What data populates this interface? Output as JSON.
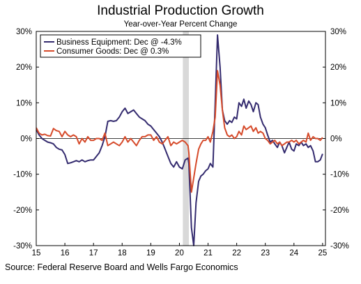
{
  "chart_data": {
    "type": "line",
    "title": "Industrial Production Growth",
    "subtitle": "Year-over-Year Percent Change",
    "source": "Source: Federal Reserve Board and Wells Fargo Economics",
    "xlim": [
      2015.0,
      2025.1
    ],
    "ylim": [
      -30,
      30
    ],
    "x_ticks": [
      {
        "value": 2015,
        "label": "15"
      },
      {
        "value": 2016,
        "label": "16"
      },
      {
        "value": 2017,
        "label": "17"
      },
      {
        "value": 2018,
        "label": "18"
      },
      {
        "value": 2019,
        "label": "19"
      },
      {
        "value": 2020,
        "label": "20"
      },
      {
        "value": 2021,
        "label": "21"
      },
      {
        "value": 2022,
        "label": "22"
      },
      {
        "value": 2023,
        "label": "23"
      },
      {
        "value": 2024,
        "label": "24"
      },
      {
        "value": 2025,
        "label": "25"
      }
    ],
    "y_ticks": [
      {
        "value": 30,
        "label": "30%"
      },
      {
        "value": 20,
        "label": "20%"
      },
      {
        "value": 10,
        "label": "10%"
      },
      {
        "value": 0,
        "label": "0%"
      },
      {
        "value": -10,
        "label": "-10%"
      },
      {
        "value": -20,
        "label": "-20%"
      },
      {
        "value": -30,
        "label": "-30%"
      }
    ],
    "recession_shading": {
      "start": 2020.12,
      "end": 2020.33,
      "color": "#d9d9d9"
    },
    "grid": false,
    "zero_line": true,
    "legend": {
      "position": "top-left"
    },
    "series": [
      {
        "name": "Business Equipment: Dec @ -4.3%",
        "color": "#332a6e",
        "points": [
          [
            2015.0,
            2.5
          ],
          [
            2015.1,
            1.0
          ],
          [
            2015.2,
            0.0
          ],
          [
            2015.3,
            -0.5
          ],
          [
            2015.4,
            -1.0
          ],
          [
            2015.5,
            -1.2
          ],
          [
            2015.6,
            -1.5
          ],
          [
            2015.7,
            -2.5
          ],
          [
            2015.8,
            -3.0
          ],
          [
            2015.9,
            -3.2
          ],
          [
            2016.0,
            -4.5
          ],
          [
            2016.1,
            -7.0
          ],
          [
            2016.2,
            -6.8
          ],
          [
            2016.3,
            -6.5
          ],
          [
            2016.4,
            -6.2
          ],
          [
            2016.5,
            -6.5
          ],
          [
            2016.6,
            -6.0
          ],
          [
            2016.7,
            -6.5
          ],
          [
            2016.8,
            -6.2
          ],
          [
            2016.9,
            -6.0
          ],
          [
            2017.0,
            -6.0
          ],
          [
            2017.1,
            -5.0
          ],
          [
            2017.2,
            -4.0
          ],
          [
            2017.3,
            -2.0
          ],
          [
            2017.4,
            0.5
          ],
          [
            2017.5,
            4.8
          ],
          [
            2017.6,
            5.0
          ],
          [
            2017.7,
            4.8
          ],
          [
            2017.8,
            5.0
          ],
          [
            2017.9,
            6.0
          ],
          [
            2018.0,
            7.5
          ],
          [
            2018.1,
            8.5
          ],
          [
            2018.2,
            7.0
          ],
          [
            2018.3,
            7.5
          ],
          [
            2018.4,
            8.0
          ],
          [
            2018.5,
            7.0
          ],
          [
            2018.6,
            6.0
          ],
          [
            2018.7,
            5.5
          ],
          [
            2018.8,
            5.0
          ],
          [
            2018.9,
            4.0
          ],
          [
            2019.0,
            3.5
          ],
          [
            2019.1,
            2.5
          ],
          [
            2019.2,
            1.5
          ],
          [
            2019.3,
            0.5
          ],
          [
            2019.4,
            -1.0
          ],
          [
            2019.5,
            -3.0
          ],
          [
            2019.6,
            -5.0
          ],
          [
            2019.7,
            -7.0
          ],
          [
            2019.8,
            -8.0
          ],
          [
            2019.9,
            -6.5
          ],
          [
            2020.0,
            -8.0
          ],
          [
            2020.1,
            -8.5
          ],
          [
            2020.2,
            -6.0
          ],
          [
            2020.3,
            -5.5
          ],
          [
            2020.33,
            -7.0
          ],
          [
            2020.42,
            -25.0
          ],
          [
            2020.5,
            -30.0
          ],
          [
            2020.58,
            -18.0
          ],
          [
            2020.67,
            -12.0
          ],
          [
            2020.75,
            -10.5
          ],
          [
            2020.83,
            -10.0
          ],
          [
            2020.92,
            -9.0
          ],
          [
            2021.0,
            -8.5
          ],
          [
            2021.08,
            -7.0
          ],
          [
            2021.17,
            -8.0
          ],
          [
            2021.25,
            10.0
          ],
          [
            2021.33,
            29.0
          ],
          [
            2021.42,
            20.0
          ],
          [
            2021.5,
            8.0
          ],
          [
            2021.58,
            5.0
          ],
          [
            2021.67,
            4.0
          ],
          [
            2021.75,
            5.0
          ],
          [
            2021.83,
            4.5
          ],
          [
            2021.92,
            6.0
          ],
          [
            2022.0,
            5.5
          ],
          [
            2022.08,
            10.0
          ],
          [
            2022.17,
            9.0
          ],
          [
            2022.25,
            11.0
          ],
          [
            2022.33,
            8.5
          ],
          [
            2022.42,
            10.5
          ],
          [
            2022.5,
            9.5
          ],
          [
            2022.58,
            7.5
          ],
          [
            2022.67,
            10.0
          ],
          [
            2022.75,
            9.5
          ],
          [
            2022.83,
            6.0
          ],
          [
            2022.92,
            4.0
          ],
          [
            2023.0,
            3.0
          ],
          [
            2023.08,
            1.0
          ],
          [
            2023.17,
            -1.0
          ],
          [
            2023.25,
            -0.5
          ],
          [
            2023.33,
            -1.5
          ],
          [
            2023.42,
            -2.5
          ],
          [
            2023.5,
            -1.0
          ],
          [
            2023.58,
            -2.0
          ],
          [
            2023.67,
            -4.0
          ],
          [
            2023.75,
            -2.5
          ],
          [
            2023.83,
            -1.0
          ],
          [
            2023.92,
            -3.0
          ],
          [
            2024.0,
            -3.5
          ],
          [
            2024.08,
            -1.5
          ],
          [
            2024.17,
            -2.0
          ],
          [
            2024.25,
            -1.0
          ],
          [
            2024.33,
            -2.0
          ],
          [
            2024.42,
            -1.5
          ],
          [
            2024.5,
            -2.5
          ],
          [
            2024.58,
            -2.0
          ],
          [
            2024.67,
            -3.5
          ],
          [
            2024.75,
            -6.5
          ],
          [
            2024.83,
            -6.5
          ],
          [
            2024.92,
            -6.0
          ],
          [
            2025.0,
            -4.3
          ]
        ]
      },
      {
        "name": "Consumer Goods: Dec @ 0.3%",
        "color": "#d64a2a",
        "points": [
          [
            2015.0,
            3.0
          ],
          [
            2015.1,
            1.5
          ],
          [
            2015.2,
            1.0
          ],
          [
            2015.3,
            1.2
          ],
          [
            2015.4,
            0.8
          ],
          [
            2015.5,
            0.7
          ],
          [
            2015.6,
            2.8
          ],
          [
            2015.7,
            2.2
          ],
          [
            2015.8,
            2.0
          ],
          [
            2015.9,
            0.5
          ],
          [
            2016.0,
            2.0
          ],
          [
            2016.1,
            1.0
          ],
          [
            2016.2,
            0.5
          ],
          [
            2016.3,
            1.0
          ],
          [
            2016.4,
            0.5
          ],
          [
            2016.5,
            -1.5
          ],
          [
            2016.6,
            0.0
          ],
          [
            2016.7,
            -1.0
          ],
          [
            2016.8,
            0.5
          ],
          [
            2016.9,
            -0.5
          ],
          [
            2017.0,
            -0.5
          ],
          [
            2017.1,
            0.0
          ],
          [
            2017.2,
            0.0
          ],
          [
            2017.3,
            -0.5
          ],
          [
            2017.4,
            1.5
          ],
          [
            2017.5,
            -2.0
          ],
          [
            2017.6,
            -1.5
          ],
          [
            2017.7,
            -1.0
          ],
          [
            2017.8,
            -1.5
          ],
          [
            2017.9,
            -2.0
          ],
          [
            2018.0,
            -1.0
          ],
          [
            2018.1,
            0.5
          ],
          [
            2018.2,
            -1.0
          ],
          [
            2018.3,
            0.0
          ],
          [
            2018.4,
            -1.0
          ],
          [
            2018.5,
            -2.0
          ],
          [
            2018.6,
            -0.5
          ],
          [
            2018.7,
            0.5
          ],
          [
            2018.8,
            0.5
          ],
          [
            2018.9,
            1.0
          ],
          [
            2019.0,
            1.0
          ],
          [
            2019.1,
            -0.5
          ],
          [
            2019.2,
            0.5
          ],
          [
            2019.3,
            -1.0
          ],
          [
            2019.4,
            -1.5
          ],
          [
            2019.5,
            -0.5
          ],
          [
            2019.6,
            0.5
          ],
          [
            2019.7,
            -2.0
          ],
          [
            2019.8,
            -1.0
          ],
          [
            2019.9,
            -1.5
          ],
          [
            2020.0,
            -1.0
          ],
          [
            2020.1,
            -0.5
          ],
          [
            2020.2,
            -1.0
          ],
          [
            2020.3,
            -2.0
          ],
          [
            2020.33,
            -4.0
          ],
          [
            2020.42,
            -15.0
          ],
          [
            2020.5,
            -11.0
          ],
          [
            2020.58,
            -7.0
          ],
          [
            2020.67,
            -3.0
          ],
          [
            2020.75,
            -1.5
          ],
          [
            2020.83,
            -0.5
          ],
          [
            2020.92,
            -0.5
          ],
          [
            2021.0,
            0.5
          ],
          [
            2021.08,
            -1.0
          ],
          [
            2021.17,
            2.0
          ],
          [
            2021.25,
            6.0
          ],
          [
            2021.33,
            19.0
          ],
          [
            2021.42,
            15.0
          ],
          [
            2021.5,
            8.0
          ],
          [
            2021.58,
            3.0
          ],
          [
            2021.67,
            1.0
          ],
          [
            2021.75,
            0.5
          ],
          [
            2021.83,
            1.0
          ],
          [
            2021.92,
            0.0
          ],
          [
            2022.0,
            0.5
          ],
          [
            2022.08,
            2.0
          ],
          [
            2022.17,
            1.0
          ],
          [
            2022.25,
            3.5
          ],
          [
            2022.33,
            2.5
          ],
          [
            2022.42,
            3.0
          ],
          [
            2022.5,
            3.5
          ],
          [
            2022.58,
            2.0
          ],
          [
            2022.67,
            3.0
          ],
          [
            2022.75,
            1.5
          ],
          [
            2022.83,
            2.0
          ],
          [
            2022.92,
            1.5
          ],
          [
            2023.0,
            0.0
          ],
          [
            2023.08,
            -0.5
          ],
          [
            2023.17,
            -1.5
          ],
          [
            2023.25,
            -1.0
          ],
          [
            2023.33,
            -0.5
          ],
          [
            2023.42,
            -1.5
          ],
          [
            2023.5,
            -1.0
          ],
          [
            2023.58,
            -2.0
          ],
          [
            2023.67,
            -1.5
          ],
          [
            2023.75,
            -1.0
          ],
          [
            2023.83,
            -1.0
          ],
          [
            2023.92,
            -0.5
          ],
          [
            2024.0,
            -1.0
          ],
          [
            2024.08,
            -0.5
          ],
          [
            2024.17,
            -1.5
          ],
          [
            2024.25,
            -1.0
          ],
          [
            2024.33,
            -0.5
          ],
          [
            2024.42,
            -1.0
          ],
          [
            2024.5,
            1.5
          ],
          [
            2024.58,
            -0.5
          ],
          [
            2024.67,
            0.5
          ],
          [
            2024.75,
            0.0
          ],
          [
            2024.83,
            0.0
          ],
          [
            2024.92,
            -0.5
          ],
          [
            2025.0,
            0.3
          ]
        ]
      }
    ]
  }
}
